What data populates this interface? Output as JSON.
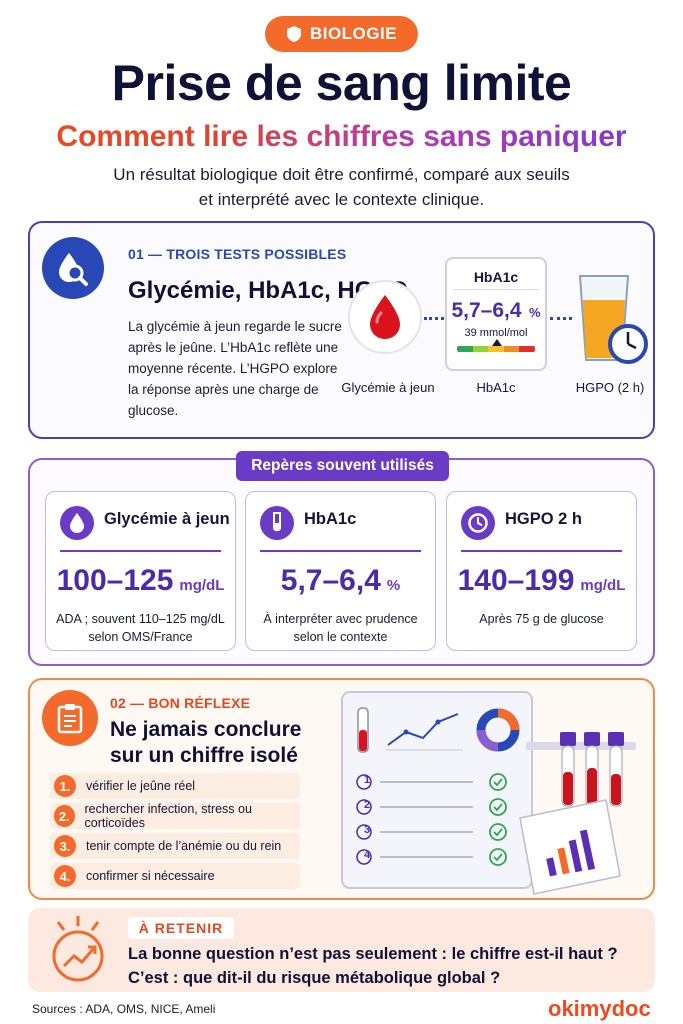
{
  "header": {
    "badge": "BIOLOGIE",
    "title": "Prise de sang limite",
    "subtitle": "Comment lire les chiffres sans paniquer",
    "intro_line1": "Un résultat biologique doit être confirmé, comparé aux seuils",
    "intro_line2": "et interprété avec le contexte clinique."
  },
  "section1": {
    "label": "01 — TROIS TESTS POSSIBLES",
    "heading": "Glycémie, HbA1c, HGPO",
    "paragraph": "La glycémie à jeun regarde le sucre après le jeûne. L’HbA1c reflète une moyenne récente. L’HGPO explore la réponse après une charge de glucose.",
    "hba_box_title": "HbA1c",
    "hba_box_value": "5,7–6,4",
    "hba_box_unit": "%",
    "hba_box_sub": "39 mmol/mol",
    "caption_glycemie": "Glycémie à jeun",
    "caption_hba": "HbA1c",
    "caption_hgpo": "HGPO (2 h)"
  },
  "section2": {
    "pill": "Repères souvent utilisés",
    "cards": [
      {
        "title": "Glycémie à jeun",
        "value": "100–125",
        "unit": "mg/dL",
        "note": "ADA ; souvent 110–125 mg/dL selon OMS/France",
        "icon": "drop-icon"
      },
      {
        "title": "HbA1c",
        "value": "5,7–6,4",
        "unit": "%",
        "note": "À interpréter avec prudence selon le contexte",
        "icon": "test-tube-icon"
      },
      {
        "title": "HGPO 2 h",
        "value": "140–199",
        "unit": "mg/dL",
        "note": "Après 75 g de glucose",
        "icon": "clock-icon"
      }
    ]
  },
  "section3": {
    "label": "02 — BON RÉFLEXE",
    "heading_line1": "Ne jamais conclure",
    "heading_line2": "sur un chiffre isolé",
    "steps": [
      {
        "num": "1.",
        "text": "vérifier le jeûne réel"
      },
      {
        "num": "2.",
        "text": "rechercher infection, stress ou corticoïdes"
      },
      {
        "num": "3.",
        "text": "tenir compte de l’anémie ou du rein"
      },
      {
        "num": "4.",
        "text": "confirmer si nécessaire"
      }
    ],
    "checklist_numbers": [
      "1",
      "2",
      "3",
      "4"
    ]
  },
  "section4": {
    "label": "À RETENIR",
    "line1": "La bonne question n’est pas seulement : le chiffre est-il haut ?",
    "line2": "C’est : que dit-il du risque métabolique global ?"
  },
  "footer": {
    "sources": "Sources : ADA, OMS, NICE, Ameli",
    "logo": "okimydoc"
  },
  "colors": {
    "orange": "#f36a2a",
    "purple": "#6a3bc4",
    "navy": "#0f1236",
    "blue": "#2748b5"
  }
}
